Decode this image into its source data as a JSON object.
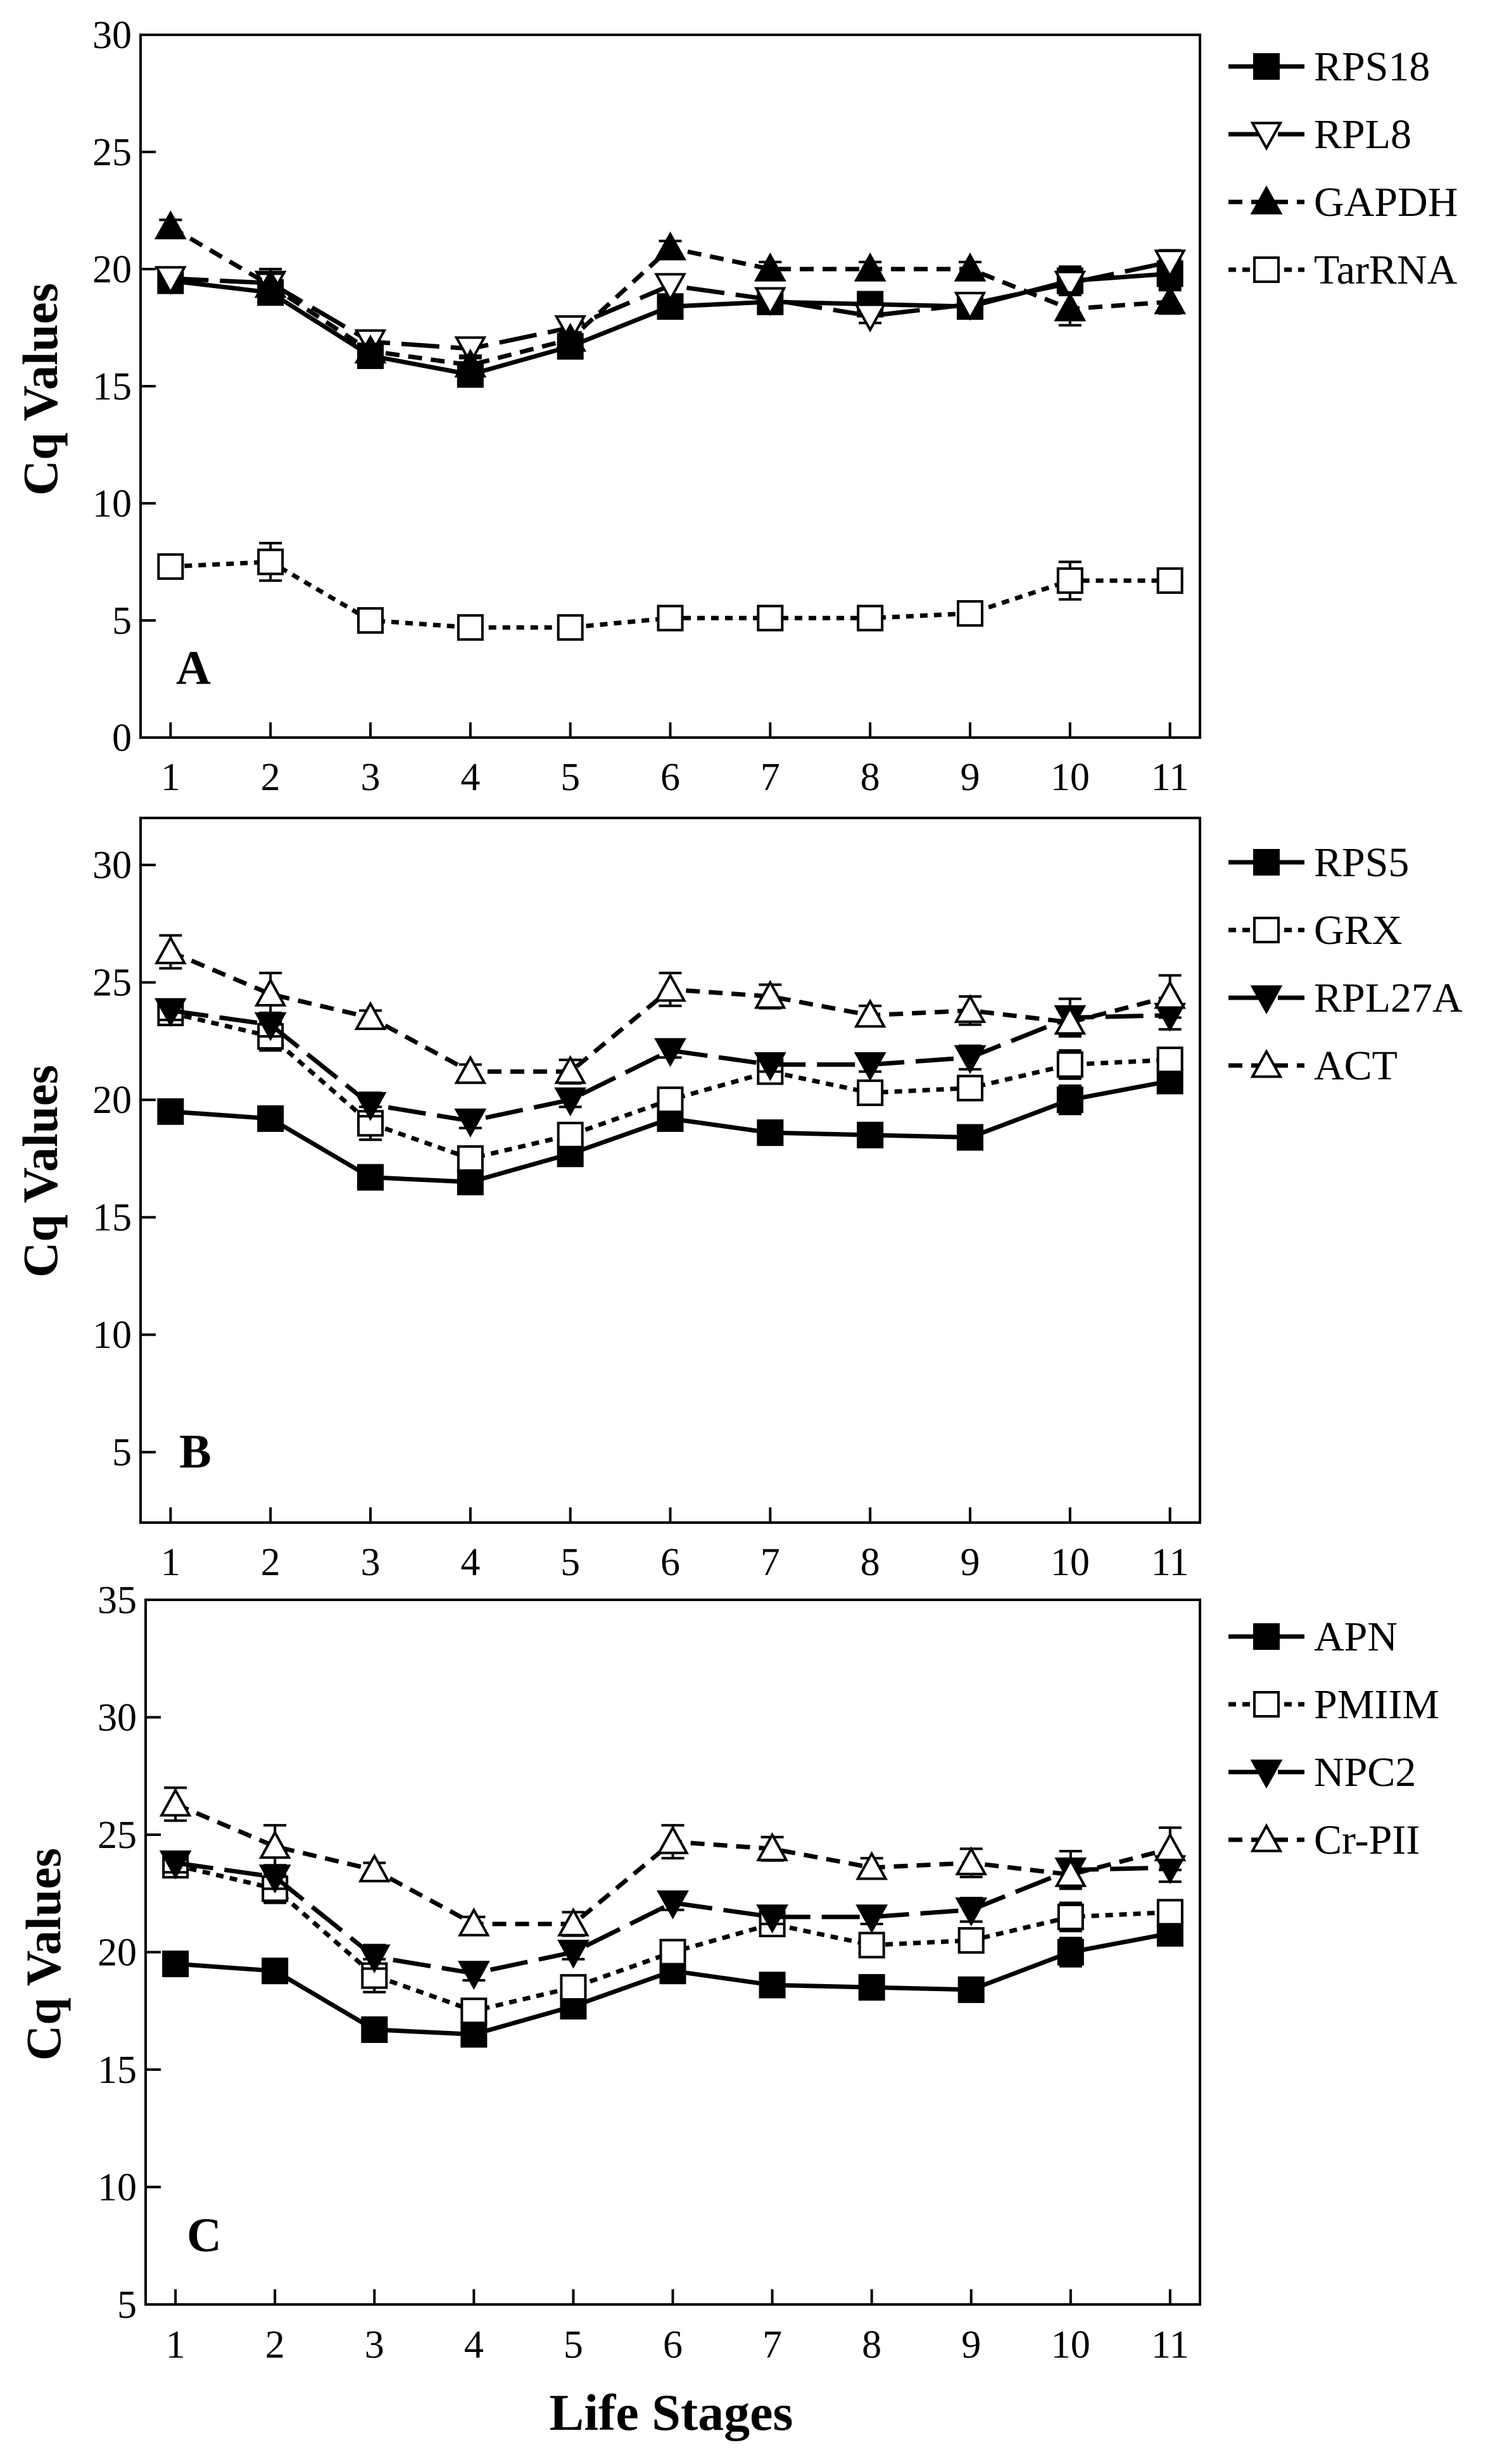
{
  "figure": {
    "xlabel": "Life Stages"
  },
  "chart_data": [
    {
      "type": "line",
      "panel": "A",
      "ylabel": "Cq Values",
      "xlabel": "",
      "x": [
        1,
        2,
        3,
        4,
        5,
        6,
        7,
        8,
        9,
        10,
        11
      ],
      "xlim": [
        0.7,
        11.3
      ],
      "ylim": [
        0,
        30
      ],
      "yticks": [
        0,
        5,
        10,
        15,
        20,
        25,
        30
      ],
      "series": [
        {
          "name": "RPS18",
          "style": "solid",
          "marker": "square-filled",
          "values": [
            19.5,
            19.0,
            16.3,
            15.5,
            16.7,
            18.4,
            18.6,
            18.5,
            18.4,
            19.5,
            19.8
          ],
          "errors": [
            0.3,
            0.4,
            0.3,
            0.3,
            0.2,
            0.3,
            0.3,
            0.3,
            0.3,
            0.6,
            0.6
          ]
        },
        {
          "name": "RPL8",
          "style": "longdash",
          "marker": "tri-down-open",
          "values": [
            19.6,
            19.4,
            16.9,
            16.6,
            17.5,
            19.3,
            18.7,
            18.0,
            18.5,
            19.4,
            20.3
          ],
          "errors": [
            0.3,
            0.6,
            0.3,
            0.3,
            0.3,
            0.4,
            0.3,
            0.3,
            0.3,
            0.5,
            0.5
          ]
        },
        {
          "name": "GAPDH",
          "style": "dashed",
          "marker": "tri-up-filled",
          "values": [
            21.8,
            19.3,
            16.5,
            15.9,
            17.0,
            20.9,
            20.0,
            20.0,
            20.0,
            18.3,
            18.6
          ],
          "errors": [
            0.3,
            0.5,
            0.3,
            0.3,
            0.3,
            0.3,
            0.3,
            0.3,
            0.3,
            0.7,
            0.5
          ]
        },
        {
          "name": "TarRNA",
          "style": "dotted",
          "marker": "square-open",
          "values": [
            7.3,
            7.5,
            5.0,
            4.7,
            4.7,
            5.1,
            5.1,
            5.1,
            5.3,
            6.7,
            6.7
          ],
          "errors": [
            0.4,
            0.8,
            0.3,
            0.2,
            0.3,
            0.3,
            0.3,
            0.3,
            0.4,
            0.8,
            0.5
          ]
        }
      ]
    },
    {
      "type": "line",
      "panel": "B",
      "ylabel": "Cq Values",
      "xlabel": "",
      "x": [
        1,
        2,
        3,
        4,
        5,
        6,
        7,
        8,
        9,
        10,
        11
      ],
      "xlim": [
        0.7,
        11.3
      ],
      "ylim": [
        2,
        32
      ],
      "yticks": [
        5,
        10,
        15,
        20,
        25,
        30
      ],
      "series": [
        {
          "name": "RPS5",
          "style": "solid",
          "marker": "square-filled",
          "values": [
            19.5,
            19.2,
            16.7,
            16.5,
            17.7,
            19.2,
            18.6,
            18.5,
            18.4,
            20.0,
            20.8
          ],
          "errors": [
            0.2,
            0.4,
            0.2,
            0.2,
            0.3,
            0.3,
            0.2,
            0.2,
            0.2,
            0.6,
            0.4
          ]
        },
        {
          "name": "GRX",
          "style": "dotted",
          "marker": "square-open",
          "values": [
            23.7,
            22.7,
            19.0,
            17.5,
            18.5,
            20.0,
            21.2,
            20.3,
            20.5,
            21.5,
            21.7
          ],
          "errors": [
            0.4,
            0.6,
            0.7,
            0.4,
            0.3,
            0.4,
            0.4,
            0.4,
            0.4,
            0.6,
            0.4
          ]
        },
        {
          "name": "RPL27A",
          "style": "longdash",
          "marker": "tri-down-filled",
          "values": [
            23.8,
            23.2,
            19.8,
            19.1,
            20.0,
            22.1,
            21.5,
            21.5,
            21.8,
            23.5,
            23.6
          ],
          "errors": [
            0.4,
            0.5,
            0.5,
            0.3,
            0.3,
            0.3,
            0.3,
            0.3,
            0.5,
            0.8,
            0.6
          ]
        },
        {
          "name": "ACT",
          "style": "dashed",
          "marker": "tri-up-open",
          "values": [
            26.3,
            24.5,
            23.5,
            21.2,
            21.2,
            24.7,
            24.4,
            23.6,
            23.8,
            23.3,
            24.4
          ],
          "errors": [
            0.7,
            0.9,
            0.3,
            0.3,
            0.5,
            0.7,
            0.5,
            0.4,
            0.6,
            0.5,
            0.9
          ]
        }
      ]
    },
    {
      "type": "line",
      "panel": "C",
      "ylabel": "Cq Values",
      "xlabel": "Life Stages",
      "x": [
        1,
        2,
        3,
        4,
        5,
        6,
        7,
        8,
        9,
        10,
        11
      ],
      "xlim": [
        0.7,
        11.3
      ],
      "ylim": [
        5,
        35
      ],
      "yticks": [
        5,
        10,
        15,
        20,
        25,
        30,
        35
      ],
      "series": [
        {
          "name": "APN",
          "style": "solid",
          "marker": "square-filled",
          "values": [
            19.5,
            19.2,
            16.7,
            16.5,
            17.7,
            19.2,
            18.6,
            18.5,
            18.4,
            20.0,
            20.8
          ],
          "errors": [
            0.2,
            0.4,
            0.2,
            0.2,
            0.3,
            0.3,
            0.2,
            0.2,
            0.2,
            0.6,
            0.4
          ]
        },
        {
          "name": "PMIIM",
          "style": "dotted",
          "marker": "square-open",
          "values": [
            23.7,
            22.7,
            19.0,
            17.5,
            18.5,
            20.0,
            21.2,
            20.3,
            20.5,
            21.5,
            21.7
          ],
          "errors": [
            0.4,
            0.6,
            0.7,
            0.4,
            0.3,
            0.4,
            0.4,
            0.4,
            0.4,
            0.6,
            0.4
          ]
        },
        {
          "name": "NPC2",
          "style": "longdash",
          "marker": "tri-down-filled",
          "values": [
            23.8,
            23.2,
            19.8,
            19.1,
            20.0,
            22.1,
            21.5,
            21.5,
            21.8,
            23.5,
            23.6
          ],
          "errors": [
            0.4,
            0.5,
            0.5,
            0.3,
            0.3,
            0.3,
            0.3,
            0.3,
            0.5,
            0.8,
            0.6
          ]
        },
        {
          "name": "Cr-PII",
          "style": "dashed",
          "marker": "tri-up-open",
          "values": [
            26.3,
            24.5,
            23.5,
            21.2,
            21.2,
            24.7,
            24.4,
            23.6,
            23.8,
            23.3,
            24.4
          ],
          "errors": [
            0.7,
            0.9,
            0.3,
            0.3,
            0.5,
            0.7,
            0.5,
            0.4,
            0.6,
            0.5,
            0.9
          ]
        }
      ]
    }
  ]
}
